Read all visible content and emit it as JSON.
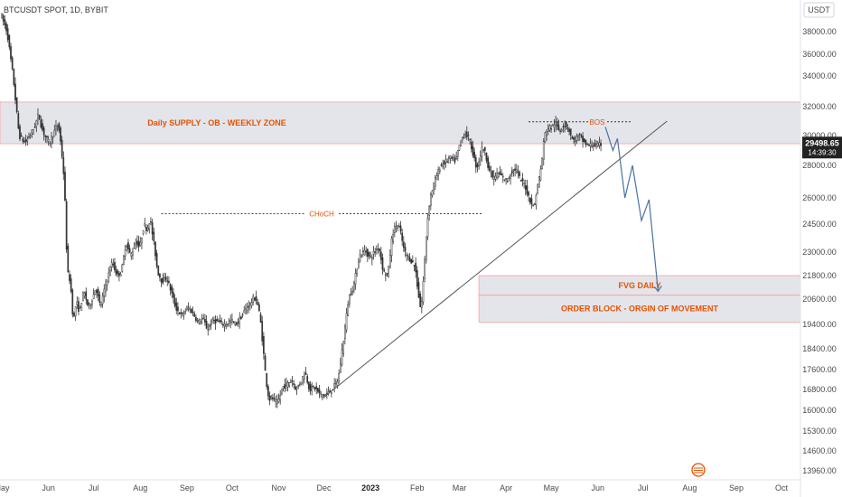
{
  "header": {
    "title": "BTCUSDT SPOT, 1D, BYBIT",
    "currency": "USDT"
  },
  "price_label": {
    "value": "29498.65",
    "countdown": "14:39:30"
  },
  "chart_data": {
    "type": "candlestick",
    "symbol": "BTCUSDT SPOT",
    "interval": "1D",
    "exchange": "BYBIT",
    "y_ticks": [
      38000,
      36000,
      34000,
      32000,
      30000,
      28000,
      26000,
      24500,
      23000,
      21800,
      20600,
      19400,
      18400,
      17600,
      16800,
      16000,
      15300,
      14600,
      13960
    ],
    "y_tick_labels": [
      "38000.00",
      "36000.00",
      "34000.00",
      "32000.00",
      "30000.00",
      "28000.00",
      "26000.00",
      "24500.00",
      "23000.00",
      "21800.00",
      "20600.00",
      "19400.00",
      "18400.00",
      "17600.00",
      "16800.00",
      "16000.00",
      "15300.00",
      "14600.00",
      "13960.00"
    ],
    "x_labels": [
      "May",
      "Jun",
      "Jul",
      "Aug",
      "Sep",
      "Oct",
      "Nov",
      "Dec",
      "2023",
      "Feb",
      "Mar",
      "Apr",
      "May",
      "Jun",
      "Jul",
      "Aug",
      "Sep",
      "Oct"
    ],
    "x_label_days": [
      0,
      31,
      61,
      92,
      123,
      153,
      184,
      214,
      245,
      276,
      304,
      335,
      365,
      396,
      426,
      457,
      488,
      518
    ],
    "price_path": [
      [
        0,
        39500
      ],
      [
        4,
        38000
      ],
      [
        8,
        34000
      ],
      [
        12,
        30000
      ],
      [
        16,
        29500
      ],
      [
        22,
        30500
      ],
      [
        25,
        31500
      ],
      [
        27,
        30500
      ],
      [
        30,
        29800
      ],
      [
        32,
        29500
      ],
      [
        35,
        30200
      ],
      [
        38,
        30800
      ],
      [
        40,
        29200
      ],
      [
        42,
        27000
      ],
      [
        44,
        22000
      ],
      [
        46,
        21500
      ],
      [
        48,
        19500
      ],
      [
        50,
        20500
      ],
      [
        52,
        20000
      ],
      [
        55,
        21000
      ],
      [
        58,
        20200
      ],
      [
        60,
        20500
      ],
      [
        63,
        21200
      ],
      [
        66,
        20200
      ],
      [
        70,
        21500
      ],
      [
        74,
        22500
      ],
      [
        77,
        21800
      ],
      [
        80,
        22000
      ],
      [
        83,
        23500
      ],
      [
        86,
        22800
      ],
      [
        90,
        23600
      ],
      [
        92,
        23200
      ],
      [
        95,
        24500
      ],
      [
        97,
        24200
      ],
      [
        99,
        24800
      ],
      [
        102,
        23200
      ],
      [
        104,
        22000
      ],
      [
        107,
        21500
      ],
      [
        110,
        21700
      ],
      [
        113,
        21000
      ],
      [
        116,
        20200
      ],
      [
        120,
        19800
      ],
      [
        124,
        20200
      ],
      [
        127,
        20000
      ],
      [
        131,
        19500
      ],
      [
        134,
        19700
      ],
      [
        137,
        19200
      ],
      [
        141,
        19600
      ],
      [
        145,
        19500
      ],
      [
        149,
        19400
      ],
      [
        153,
        19600
      ],
      [
        156,
        19400
      ],
      [
        160,
        19800
      ],
      [
        163,
        20200
      ],
      [
        166,
        20400
      ],
      [
        168,
        20700
      ],
      [
        170,
        20500
      ],
      [
        172,
        19800
      ],
      [
        174,
        18500
      ],
      [
        176,
        17200
      ],
      [
        178,
        16400
      ],
      [
        180,
        16500
      ],
      [
        182,
        16300
      ],
      [
        184,
        16300
      ],
      [
        187,
        16900
      ],
      [
        190,
        17000
      ],
      [
        193,
        17200
      ],
      [
        196,
        16800
      ],
      [
        199,
        17100
      ],
      [
        202,
        17500
      ],
      [
        205,
        16800
      ],
      [
        208,
        16900
      ],
      [
        212,
        16600
      ],
      [
        216,
        16600
      ],
      [
        220,
        16800
      ],
      [
        224,
        17200
      ],
      [
        228,
        19000
      ],
      [
        231,
        20700
      ],
      [
        234,
        21200
      ],
      [
        238,
        22800
      ],
      [
        242,
        23100
      ],
      [
        245,
        22700
      ],
      [
        248,
        23000
      ],
      [
        251,
        23300
      ],
      [
        254,
        22000
      ],
      [
        257,
        21800
      ],
      [
        260,
        24000
      ],
      [
        263,
        24500
      ],
      [
        265,
        24200
      ],
      [
        268,
        23000
      ],
      [
        270,
        22800
      ],
      [
        273,
        22500
      ],
      [
        275,
        22300
      ],
      [
        277,
        21000
      ],
      [
        279,
        20000
      ],
      [
        281,
        22000
      ],
      [
        283,
        24500
      ],
      [
        285,
        26000
      ],
      [
        288,
        27000
      ],
      [
        292,
        28000
      ],
      [
        295,
        28200
      ],
      [
        298,
        28500
      ],
      [
        302,
        28300
      ],
      [
        305,
        29500
      ],
      [
        308,
        30200
      ],
      [
        311,
        29800
      ],
      [
        313,
        29000
      ],
      [
        316,
        27800
      ],
      [
        318,
        28500
      ],
      [
        320,
        29300
      ],
      [
        322,
        28700
      ],
      [
        324,
        27800
      ],
      [
        327,
        27200
      ],
      [
        330,
        27500
      ],
      [
        333,
        27300
      ],
      [
        336,
        27000
      ],
      [
        339,
        27600
      ],
      [
        342,
        27800
      ],
      [
        345,
        27100
      ],
      [
        348,
        26800
      ],
      [
        350,
        26200
      ],
      [
        352,
        25800
      ],
      [
        354,
        25400
      ],
      [
        356,
        26500
      ],
      [
        359,
        28000
      ],
      [
        361,
        30000
      ],
      [
        363,
        30500
      ],
      [
        366,
        30600
      ],
      [
        368,
        30900
      ],
      [
        371,
        30300
      ],
      [
        374,
        30800
      ],
      [
        377,
        30500
      ],
      [
        380,
        29600
      ],
      [
        384,
        30000
      ],
      [
        387,
        29600
      ],
      [
        390,
        29300
      ],
      [
        393,
        29400
      ],
      [
        396,
        29300
      ],
      [
        398,
        29400
      ]
    ],
    "zones": [
      {
        "label": "Daily SUPPLY - OB - WEEKLY ZONE",
        "from_price": 29450,
        "to_price": 32300
      },
      {
        "label": "FVG DAILY",
        "from_price": 20800,
        "to_price": 21800
      },
      {
        "label": "ORDER BLOCK - ORGIN OF MOVEMENT",
        "from_price": 19500,
        "to_price": 20800
      }
    ],
    "annotations": [
      {
        "label": "CHoCH",
        "price": 25100
      },
      {
        "label": "BOS",
        "price": 30950
      }
    ],
    "trendline": {
      "from": [
        214,
        16500
      ],
      "to": [
        442,
        31000
      ]
    },
    "projection": [
      [
        401,
        30600
      ],
      [
        406,
        29000
      ],
      [
        409,
        29800
      ],
      [
        414,
        26000
      ],
      [
        419,
        28000
      ],
      [
        425,
        24700
      ],
      [
        430,
        25900
      ],
      [
        436,
        21000
      ]
    ],
    "last_price": 29498.65,
    "colors": {
      "up": "#26a69a",
      "candle": "#333333",
      "zone_fill": "#d1d4dc",
      "zone_border": "#f7a1a1",
      "zone_text": "#e65100",
      "trendline": "#555555",
      "projection": "#4a73a3",
      "price_label_bg": "#222222"
    }
  }
}
